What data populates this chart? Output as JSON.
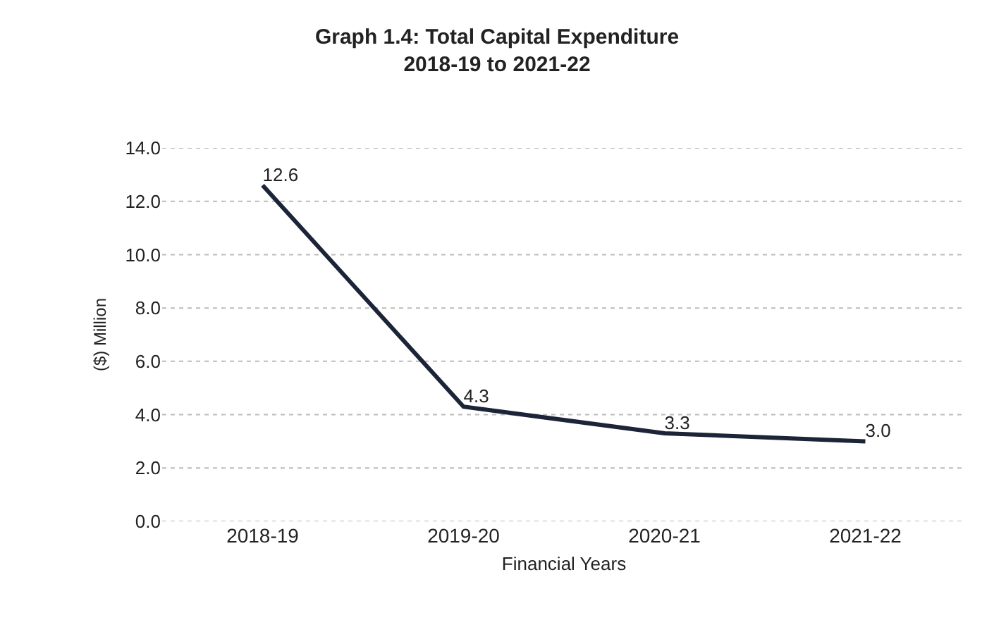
{
  "chart_data": {
    "type": "line",
    "title": "Graph 1.4: Total Capital Expenditure",
    "subtitle": "2018-19 to 2021-22",
    "xlabel": "Financial Years",
    "ylabel": "($) Million",
    "categories": [
      "2018-19",
      "2019-20",
      "2020-21",
      "2021-22"
    ],
    "series": [
      {
        "color": "#1c2438",
        "values": [
          12.6,
          4.3,
          3.3,
          3.0
        ],
        "value_labels": [
          "12.6",
          "4.3",
          "3.3",
          "3.0"
        ]
      }
    ],
    "ylim": [
      0,
      14
    ],
    "yticks": [
      {
        "value": 0,
        "label": "0.0"
      },
      {
        "value": 2,
        "label": "2.0"
      },
      {
        "value": 4,
        "label": "4.0"
      },
      {
        "value": 6,
        "label": "6.0"
      },
      {
        "value": 8,
        "label": "8.0"
      },
      {
        "value": 10,
        "label": "10.0"
      },
      {
        "value": 12,
        "label": "12.0"
      },
      {
        "value": 14,
        "label": "14.0"
      }
    ],
    "grid": "y",
    "marker": "none",
    "line_style": "solid"
  }
}
